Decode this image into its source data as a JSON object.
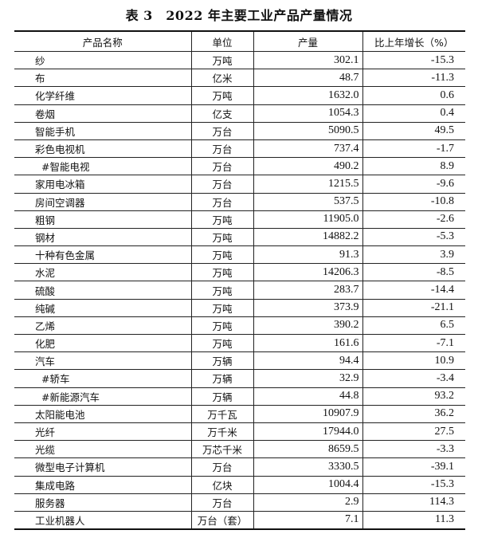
{
  "title": "表 3　2022 年主要工业产品产量情况",
  "headers": [
    "产品名称",
    "单位",
    "产量",
    "比上年增长（%）"
  ],
  "rows": [
    {
      "name": "纱",
      "unit": "万吨",
      "output": "302.1",
      "growth": "-15.3"
    },
    {
      "name": "布",
      "unit": "亿米",
      "output": "48.7",
      "growth": "-11.3"
    },
    {
      "name": "化学纤维",
      "unit": "万吨",
      "output": "1632.0",
      "growth": "0.6"
    },
    {
      "name": "卷烟",
      "unit": "亿支",
      "output": "1054.3",
      "growth": "0.4"
    },
    {
      "name": "智能手机",
      "unit": "万台",
      "output": "5090.5",
      "growth": "49.5"
    },
    {
      "name": "彩色电视机",
      "unit": "万台",
      "output": "737.4",
      "growth": "-1.7"
    },
    {
      "name": "#智能电视",
      "unit": "万台",
      "output": "490.2",
      "growth": "8.9",
      "indent": true
    },
    {
      "name": "家用电冰箱",
      "unit": "万台",
      "output": "1215.5",
      "growth": "-9.6"
    },
    {
      "name": "房间空调器",
      "unit": "万台",
      "output": "537.5",
      "growth": "-10.8"
    },
    {
      "name": "粗钢",
      "unit": "万吨",
      "output": "11905.0",
      "growth": "-2.6"
    },
    {
      "name": "钢材",
      "unit": "万吨",
      "output": "14882.2",
      "growth": "-5.3"
    },
    {
      "name": "十种有色金属",
      "unit": "万吨",
      "output": "91.3",
      "growth": "3.9"
    },
    {
      "name": "水泥",
      "unit": "万吨",
      "output": "14206.3",
      "growth": "-8.5"
    },
    {
      "name": "硫酸",
      "unit": "万吨",
      "output": "283.7",
      "growth": "-14.4"
    },
    {
      "name": "纯碱",
      "unit": "万吨",
      "output": "373.9",
      "growth": "-21.1"
    },
    {
      "name": "乙烯",
      "unit": "万吨",
      "output": "390.2",
      "growth": "6.5"
    },
    {
      "name": "化肥",
      "unit": "万吨",
      "output": "161.6",
      "growth": "-7.1"
    },
    {
      "name": "汽车",
      "unit": "万辆",
      "output": "94.4",
      "growth": "10.9"
    },
    {
      "name": "#轿车",
      "unit": "万辆",
      "output": "32.9",
      "growth": "-3.4",
      "indent": true
    },
    {
      "name": "#新能源汽车",
      "unit": "万辆",
      "output": "44.8",
      "growth": "93.2",
      "indent": true
    },
    {
      "name": "太阳能电池",
      "unit": "万千瓦",
      "output": "10907.9",
      "growth": "36.2"
    },
    {
      "name": "光纤",
      "unit": "万千米",
      "output": "17944.0",
      "growth": "27.5"
    },
    {
      "name": "光缆",
      "unit": "万芯千米",
      "output": "8659.5",
      "growth": "-3.3"
    },
    {
      "name": "微型电子计算机",
      "unit": "万台",
      "output": "3330.5",
      "growth": "-39.1"
    },
    {
      "name": "集成电路",
      "unit": "亿块",
      "output": "1004.4",
      "growth": "-15.3"
    },
    {
      "name": "服务器",
      "unit": "万台",
      "output": "2.9",
      "growth": "114.3"
    },
    {
      "name": "工业机器人",
      "unit": "万台（套）",
      "output": "7.1",
      "growth": "11.3"
    }
  ]
}
